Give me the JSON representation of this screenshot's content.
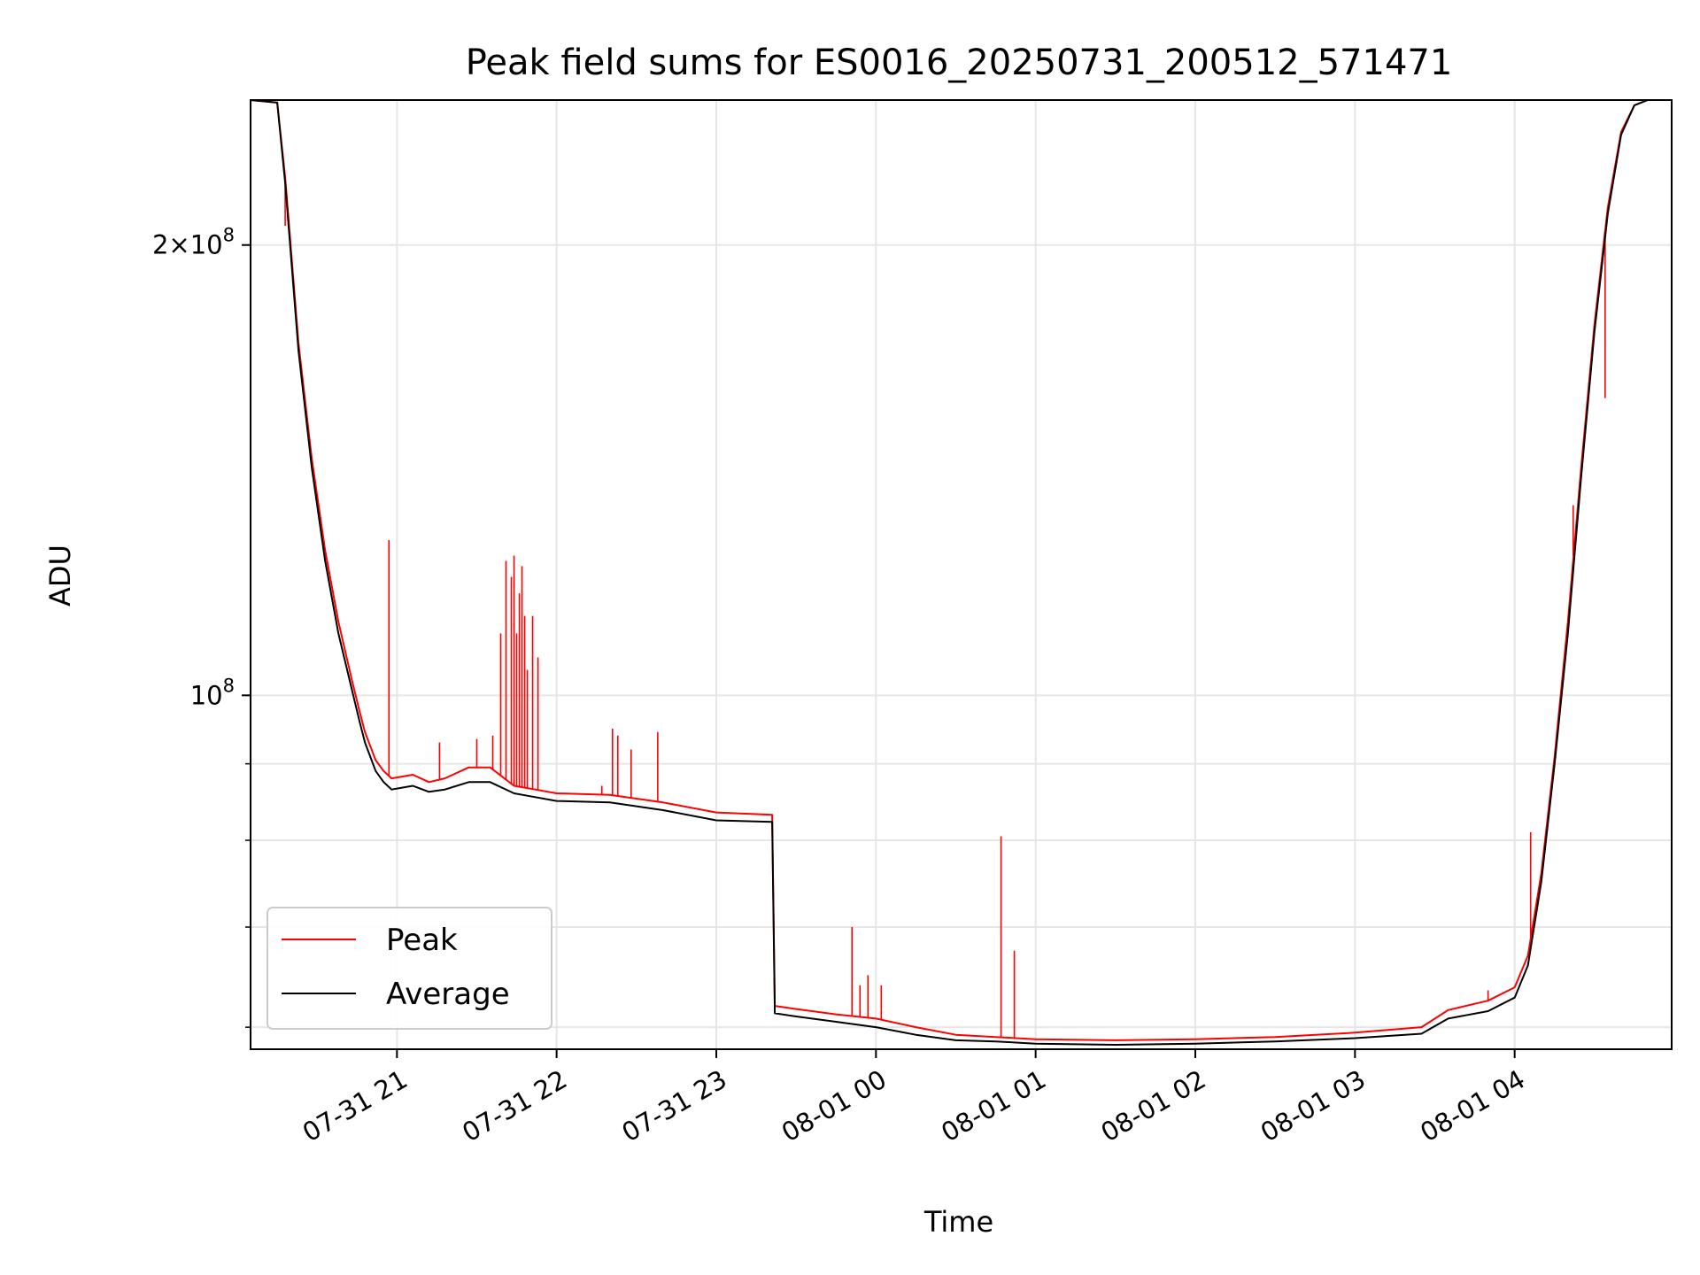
{
  "chart_data": {
    "type": "line",
    "title": "Peak field sums for ES0016_20250731_200512_571471",
    "xlabel": "Time",
    "ylabel": "ADU",
    "y_scale": "log",
    "ylim": [
      58000000,
      250000000
    ],
    "y_major_ticks": [
      {
        "value": 100000000,
        "label": "10^8"
      },
      {
        "value": 200000000,
        "label": "2×10^8"
      }
    ],
    "y_minor_ticks": [
      60000000,
      70000000,
      80000000,
      90000000
    ],
    "xlim": [
      "2025-07-31 20:05",
      "2025-08-01 04:59"
    ],
    "x_ticks": [
      {
        "value": "2025-07-31 21:00",
        "label": "07-31 21"
      },
      {
        "value": "2025-07-31 22:00",
        "label": "07-31 22"
      },
      {
        "value": "2025-07-31 23:00",
        "label": "07-31 23"
      },
      {
        "value": "2025-08-01 00:00",
        "label": "08-01 00"
      },
      {
        "value": "2025-08-01 01:00",
        "label": "08-01 01"
      },
      {
        "value": "2025-08-01 02:00",
        "label": "08-01 02"
      },
      {
        "value": "2025-08-01 03:00",
        "label": "08-01 03"
      },
      {
        "value": "2025-08-01 04:00",
        "label": "08-01 04"
      }
    ],
    "grid": true,
    "legend_position": "lower left",
    "series": [
      {
        "name": "Average",
        "color": "#000000",
        "x": [
          "2025-07-31 20:05",
          "2025-07-31 20:15",
          "2025-07-31 20:18",
          "2025-07-31 20:23",
          "2025-07-31 20:28",
          "2025-07-31 20:33",
          "2025-07-31 20:38",
          "2025-07-31 20:43",
          "2025-07-31 20:46",
          "2025-07-31 20:48",
          "2025-07-31 20:52",
          "2025-07-31 20:55",
          "2025-07-31 20:58",
          "2025-07-31 21:06",
          "2025-07-31 21:12",
          "2025-07-31 21:18",
          "2025-07-31 21:27",
          "2025-07-31 21:35",
          "2025-07-31 21:44",
          "2025-07-31 21:52",
          "2025-07-31 22:00",
          "2025-07-31 22:20",
          "2025-07-31 22:40",
          "2025-07-31 23:00",
          "2025-07-31 23:21",
          "2025-07-31 23:22",
          "2025-07-31 23:30",
          "2025-07-31 23:45",
          "2025-08-01 00:00",
          "2025-08-01 00:15",
          "2025-08-01 00:30",
          "2025-08-01 00:45",
          "2025-08-01 01:00",
          "2025-08-01 01:30",
          "2025-08-01 02:00",
          "2025-08-01 02:30",
          "2025-08-01 03:00",
          "2025-08-01 03:25",
          "2025-08-01 03:35",
          "2025-08-01 03:50",
          "2025-08-01 04:00",
          "2025-08-01 04:05",
          "2025-08-01 04:10",
          "2025-08-01 04:15",
          "2025-08-01 04:20",
          "2025-08-01 04:25",
          "2025-08-01 04:30",
          "2025-08-01 04:35",
          "2025-08-01 04:40",
          "2025-08-01 04:45",
          "2025-08-01 04:50",
          "2025-08-01 04:59"
        ],
        "values": [
          250000000,
          249000000,
          220000000,
          170000000,
          142000000,
          123000000,
          110000000,
          101000000,
          96000000,
          93000000,
          89000000,
          87500000,
          86500000,
          87000000,
          86200000,
          86500000,
          87500000,
          87500000,
          86000000,
          85500000,
          85000000,
          84800000,
          83800000,
          82500000,
          82300000,
          61300000,
          61000000,
          60500000,
          60000000,
          59300000,
          58800000,
          58700000,
          58500000,
          58400000,
          58500000,
          58700000,
          59000000,
          59400000,
          60800000,
          61500000,
          62800000,
          66000000,
          75000000,
          90000000,
          110000000,
          140000000,
          175000000,
          210000000,
          237000000,
          248000000,
          250000000,
          250000000
        ]
      },
      {
        "name": "Peak",
        "color": "#ff0000",
        "x": [
          "2025-07-31 20:05",
          "2025-07-31 20:15",
          "2025-07-31 20:18",
          "2025-07-31 20:23",
          "2025-07-31 20:28",
          "2025-07-31 20:33",
          "2025-07-31 20:38",
          "2025-07-31 20:43",
          "2025-07-31 20:46",
          "2025-07-31 20:48",
          "2025-07-31 20:52",
          "2025-07-31 20:55",
          "2025-07-31 20:58",
          "2025-07-31 21:06",
          "2025-07-31 21:12",
          "2025-07-31 21:18",
          "2025-07-31 21:27",
          "2025-07-31 21:35",
          "2025-07-31 21:44",
          "2025-07-31 21:52",
          "2025-07-31 22:00",
          "2025-07-31 22:20",
          "2025-07-31 22:40",
          "2025-07-31 23:00",
          "2025-07-31 23:21",
          "2025-07-31 23:22",
          "2025-07-31 23:30",
          "2025-07-31 23:45",
          "2025-08-01 00:00",
          "2025-08-01 00:15",
          "2025-08-01 00:30",
          "2025-08-01 00:45",
          "2025-08-01 01:00",
          "2025-08-01 01:30",
          "2025-08-01 02:00",
          "2025-08-01 02:30",
          "2025-08-01 03:00",
          "2025-08-01 03:25",
          "2025-08-01 03:35",
          "2025-08-01 03:50",
          "2025-08-01 04:00",
          "2025-08-01 04:05",
          "2025-08-01 04:10",
          "2025-08-01 04:15",
          "2025-08-01 04:20",
          "2025-08-01 04:25",
          "2025-08-01 04:30",
          "2025-08-01 04:35",
          "2025-08-01 04:40",
          "2025-08-01 04:45",
          "2025-08-01 04:50",
          "2025-08-01 04:59"
        ],
        "values": [
          250000000,
          249000000,
          222000000,
          172000000,
          144000000,
          125000000,
          112000000,
          102500000,
          97500000,
          94500000,
          90500000,
          89000000,
          88000000,
          88500000,
          87500000,
          88000000,
          89500000,
          89500000,
          87000000,
          86500000,
          86000000,
          85800000,
          84800000,
          83500000,
          83200000,
          62000000,
          61700000,
          61200000,
          60800000,
          60000000,
          59300000,
          59100000,
          58900000,
          58800000,
          58900000,
          59100000,
          59500000,
          60000000,
          61600000,
          62500000,
          63800000,
          67000000,
          76000000,
          91000000,
          112000000,
          142000000,
          177000000,
          212000000,
          238000000,
          248000000,
          250000000,
          250000000
        ],
        "spikes": [
          {
            "x": "2025-07-31 20:18",
            "value": 206000000
          },
          {
            "x": "2025-07-31 20:57",
            "value": 127000000
          },
          {
            "x": "2025-07-31 21:16",
            "value": 93000000
          },
          {
            "x": "2025-07-31 21:30",
            "value": 93500000
          },
          {
            "x": "2025-07-31 21:36",
            "value": 94000000
          },
          {
            "x": "2025-07-31 21:39",
            "value": 110000000
          },
          {
            "x": "2025-07-31 21:41",
            "value": 123000000
          },
          {
            "x": "2025-07-31 21:43",
            "value": 120000000
          },
          {
            "x": "2025-07-31 21:44",
            "value": 124000000
          },
          {
            "x": "2025-07-31 21:45",
            "value": 110000000
          },
          {
            "x": "2025-07-31 21:46",
            "value": 117000000
          },
          {
            "x": "2025-07-31 21:47",
            "value": 122000000
          },
          {
            "x": "2025-07-31 21:48",
            "value": 113000000
          },
          {
            "x": "2025-07-31 21:49",
            "value": 104000000
          },
          {
            "x": "2025-07-31 21:51",
            "value": 113000000
          },
          {
            "x": "2025-07-31 21:53",
            "value": 106000000
          },
          {
            "x": "2025-07-31 22:17",
            "value": 87000000
          },
          {
            "x": "2025-07-31 22:21",
            "value": 95000000
          },
          {
            "x": "2025-07-31 22:23",
            "value": 94000000
          },
          {
            "x": "2025-07-31 22:28",
            "value": 92000000
          },
          {
            "x": "2025-07-31 22:38",
            "value": 94500000
          },
          {
            "x": "2025-07-31 23:51",
            "value": 70000000
          },
          {
            "x": "2025-07-31 23:54",
            "value": 64000000
          },
          {
            "x": "2025-07-31 23:57",
            "value": 65000000
          },
          {
            "x": "2025-08-01 00:02",
            "value": 64000000
          },
          {
            "x": "2025-08-01 00:47",
            "value": 80500000
          },
          {
            "x": "2025-08-01 00:52",
            "value": 67500000
          },
          {
            "x": "2025-08-01 03:50",
            "value": 63500000
          },
          {
            "x": "2025-08-01 04:06",
            "value": 81000000
          },
          {
            "x": "2025-08-01 04:22",
            "value": 134000000
          },
          {
            "x": "2025-08-01 04:34",
            "value": 158000000
          }
        ]
      }
    ]
  }
}
